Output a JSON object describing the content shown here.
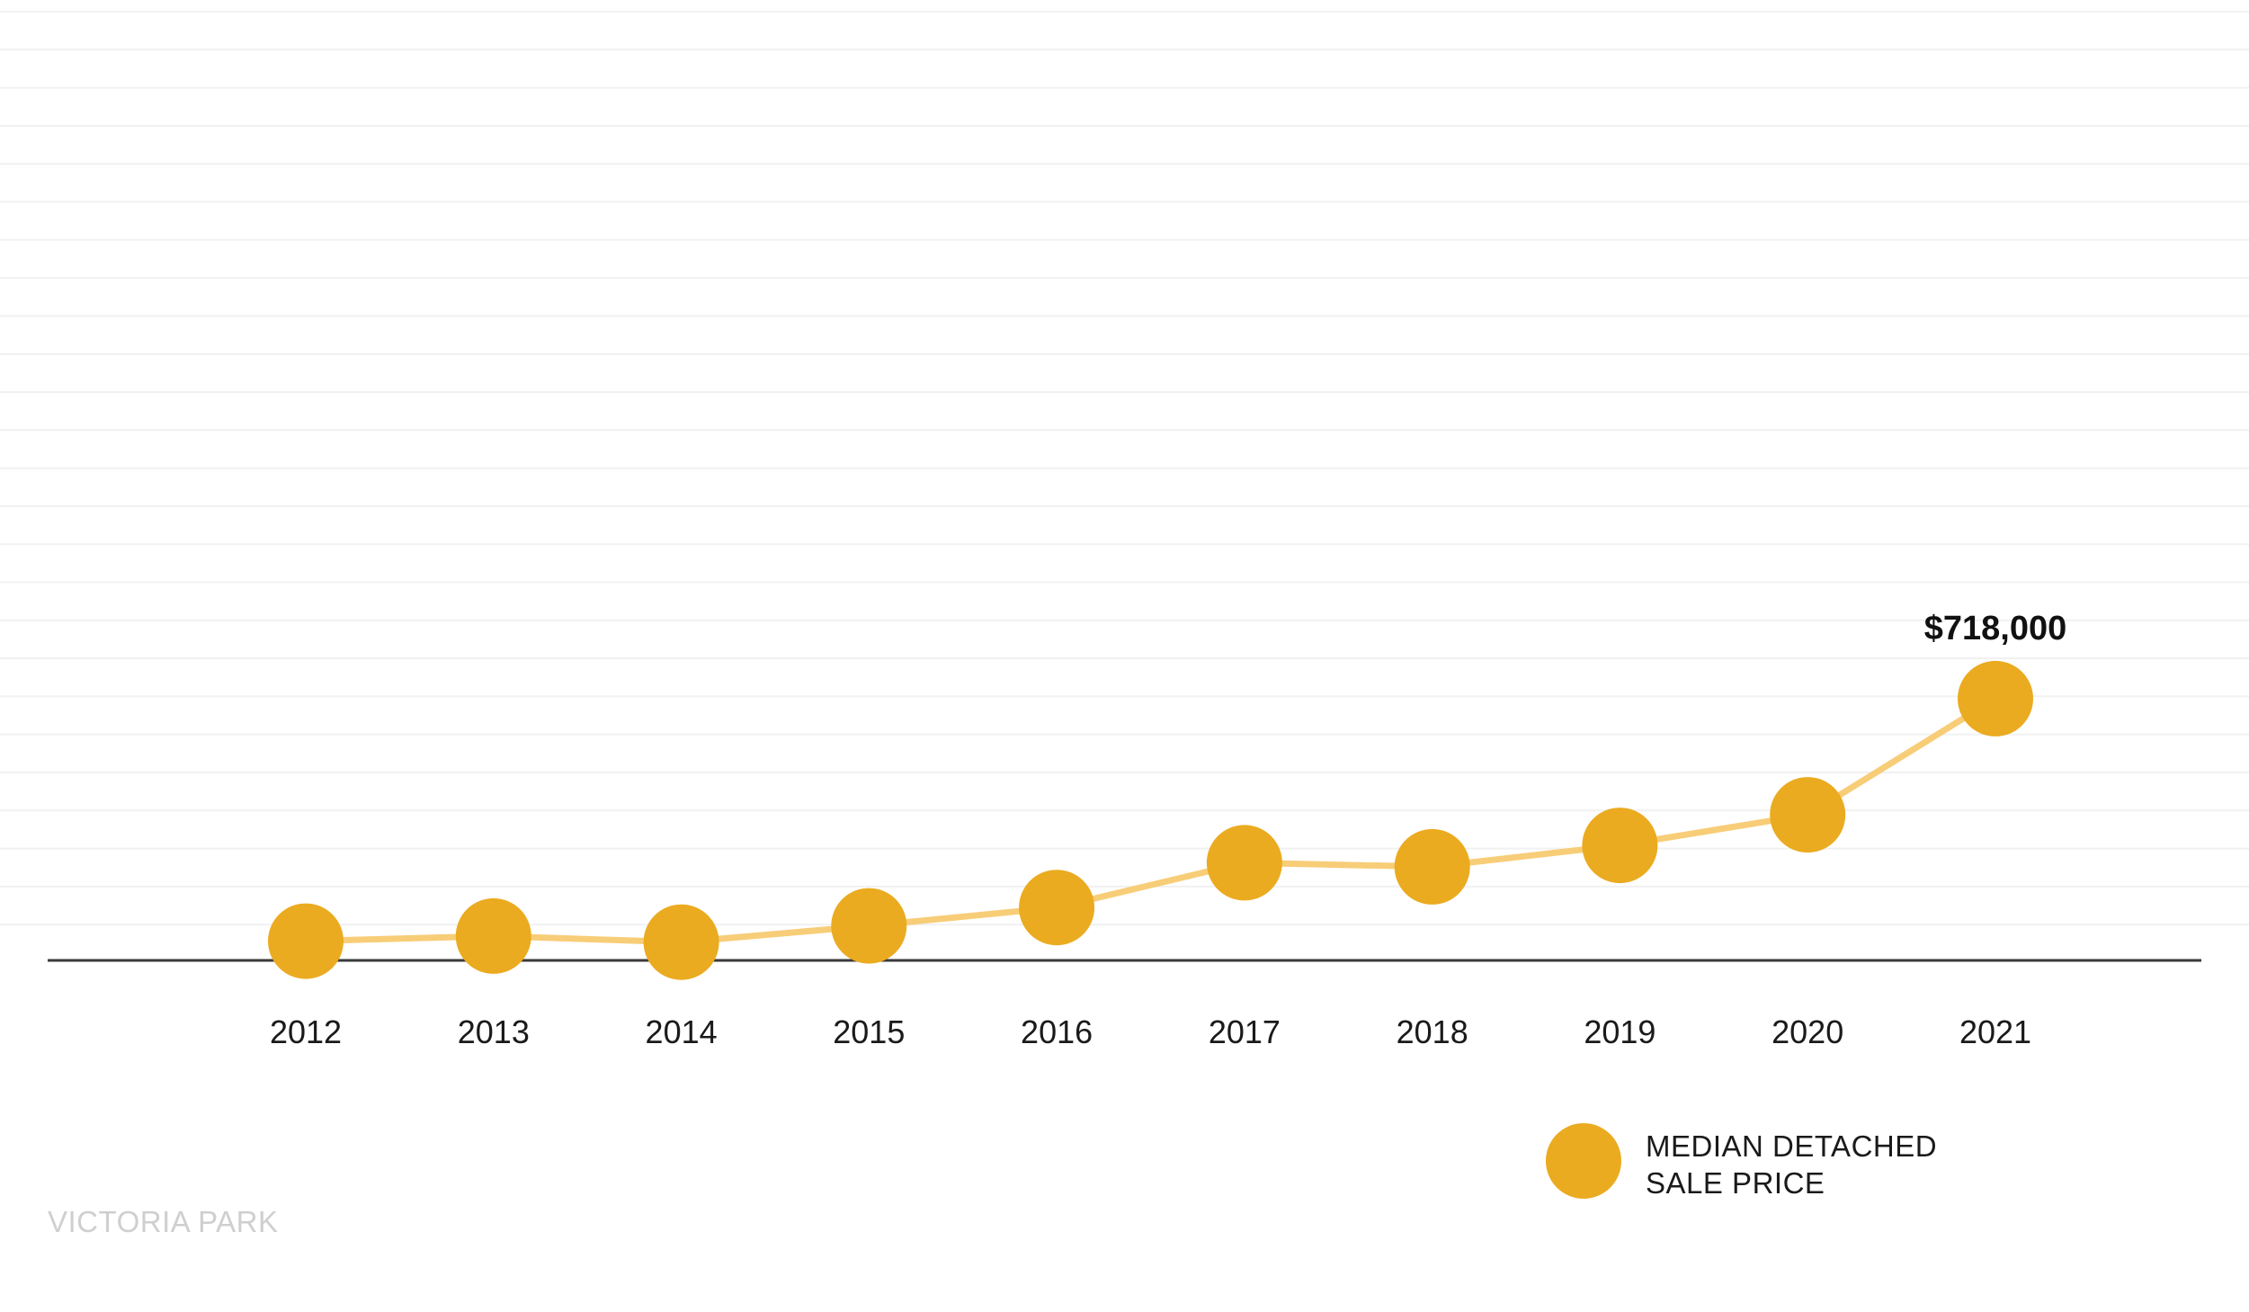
{
  "chart_data": {
    "type": "line",
    "categories": [
      "2012",
      "2013",
      "2014",
      "2015",
      "2016",
      "2017",
      "2018",
      "2019",
      "2020",
      "2021"
    ],
    "series": [
      {
        "name": "MEDIAN DETACHED SALE PRICE",
        "values": [
          480000,
          485000,
          479000,
          495000,
          513000,
          557000,
          553000,
          574000,
          604000,
          718000
        ]
      }
    ],
    "data_labels": [
      {
        "category": "2021",
        "text": "$718,000"
      }
    ],
    "legend": {
      "lines": [
        "MEDIAN DETACHED",
        "SALE PRICE"
      ],
      "placement": "bottom-right"
    },
    "footer_label": "VICTORIA PARK",
    "ylim": [
      300000,
      800000
    ],
    "grid": true,
    "y_axis_labels_shown": false,
    "colors": {
      "marker": "#ebab20",
      "line": "#f8cd78",
      "axis": "#3a3a3a",
      "grid": "#f1f1f1",
      "watermark": "#cfcfcf"
    }
  }
}
